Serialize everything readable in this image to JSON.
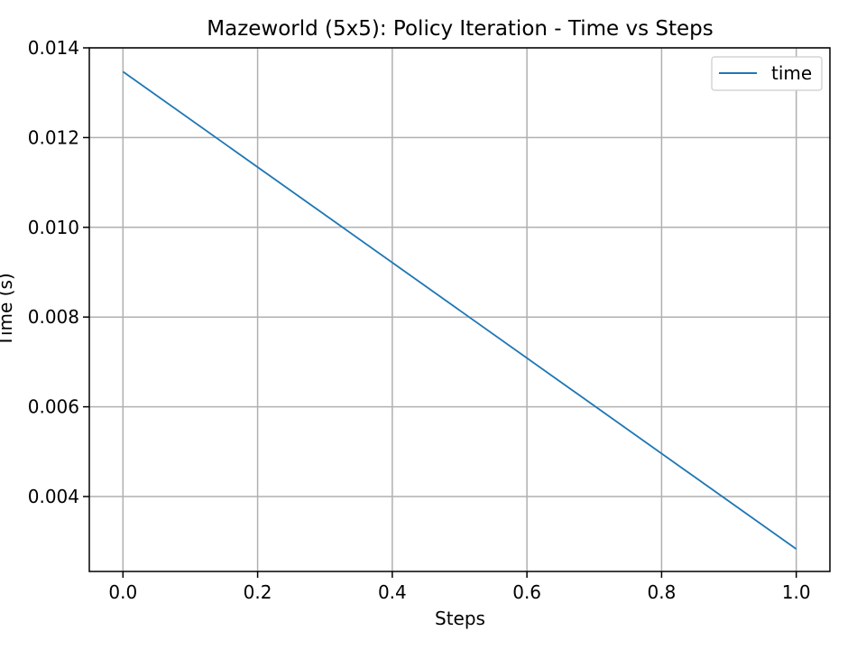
{
  "chart_data": {
    "type": "line",
    "title": "Mazeworld (5x5): Policy Iteration - Time vs Steps",
    "xlabel": "Steps",
    "ylabel": "Time (s)",
    "xlim": [
      -0.05,
      1.05
    ],
    "ylim": [
      0.00233,
      0.014
    ],
    "x_ticks": [
      0.0,
      0.2,
      0.4,
      0.6,
      0.8,
      1.0
    ],
    "x_tick_labels": [
      "0.0",
      "0.2",
      "0.4",
      "0.6",
      "0.8",
      "1.0"
    ],
    "y_ticks": [
      0.004,
      0.006,
      0.008,
      0.01,
      0.012,
      0.014
    ],
    "y_tick_labels": [
      "0.004",
      "0.006",
      "0.008",
      "0.010",
      "0.012",
      "0.014"
    ],
    "grid": true,
    "legend_position": "top-right",
    "series": [
      {
        "name": "time",
        "color": "#1f77b4",
        "x": [
          0.0,
          1.0
        ],
        "y": [
          0.01347,
          0.00283
        ]
      }
    ]
  }
}
